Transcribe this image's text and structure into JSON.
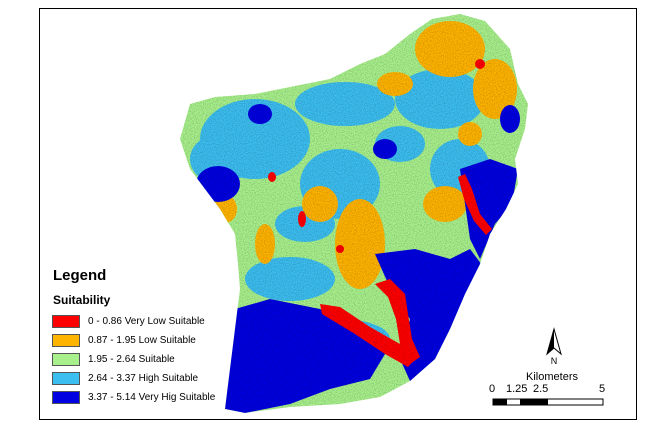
{
  "legend": {
    "title": "Legend",
    "subtitle": "Suitability",
    "items": [
      {
        "label": "0 - 0.86 Very Low Suitable",
        "color": "#ff0000"
      },
      {
        "label": "0.87 - 1.95 Low Suitable",
        "color": "#ffb400"
      },
      {
        "label": "1.95 - 2.64 Suitable",
        "color": "#a8f08c"
      },
      {
        "label": "2.64 - 3.37 High Suitable",
        "color": "#3cbef0"
      },
      {
        "label": "3.37 - 5.14 Very Hig Suitable",
        "color": "#0000e0"
      }
    ]
  },
  "north_arrow": {
    "label": "N"
  },
  "scale_bar": {
    "units": "Kilometers",
    "ticks": [
      "0",
      "1.25",
      "2.5",
      "5"
    ]
  }
}
